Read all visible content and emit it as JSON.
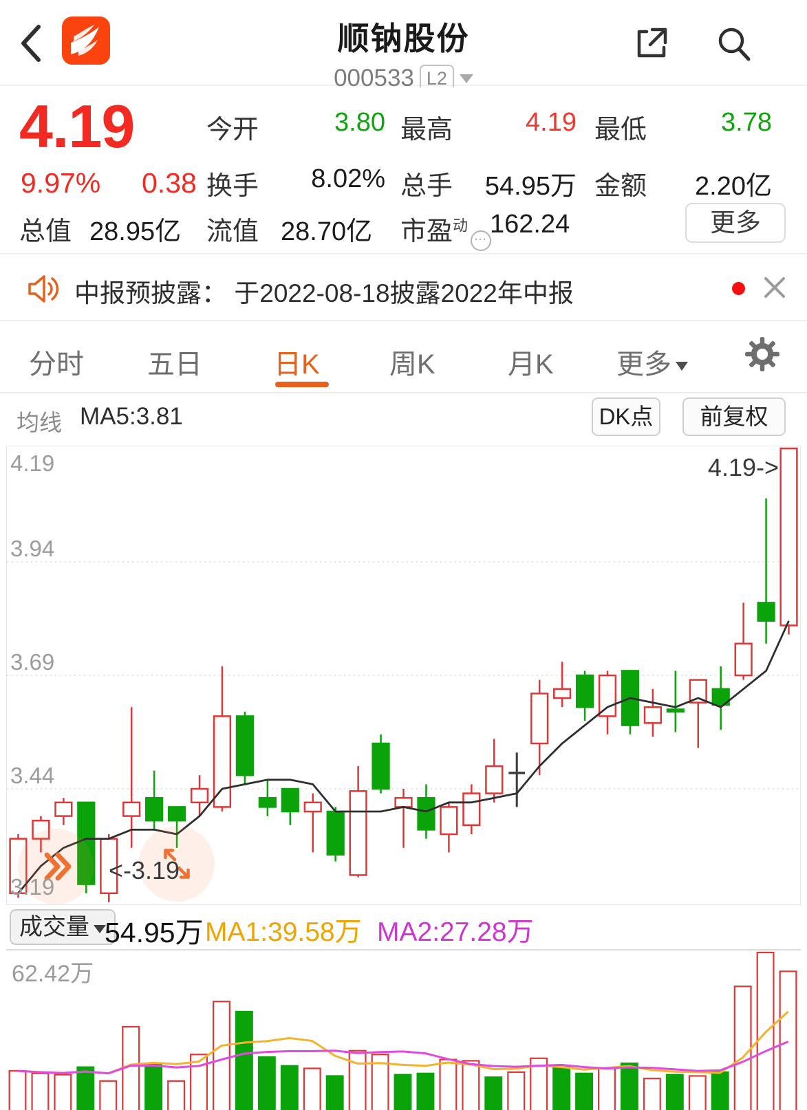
{
  "header": {
    "title": "顺钠股份",
    "code": "000533",
    "level_badge": "L2"
  },
  "quote": {
    "price": "4.19",
    "change_pct": "9.97%",
    "change_val": "0.38",
    "r1": [
      {
        "label": "今开",
        "value": "3.80",
        "color": "green"
      },
      {
        "label": "最高",
        "value": "4.19",
        "color": "red"
      },
      {
        "label": "最低",
        "value": "3.78",
        "color": "green"
      }
    ],
    "r2": [
      {
        "label": "换手",
        "value": "8.02%"
      },
      {
        "label": "总手",
        "value": "54.95万"
      },
      {
        "label": "金额",
        "value": "2.20亿"
      }
    ],
    "r3": [
      {
        "label": "总值",
        "value": "28.95亿"
      },
      {
        "label": "流值",
        "value": "28.70亿"
      },
      {
        "label": "市盈",
        "sup": "动",
        "value": "162.24"
      }
    ],
    "more_label": "更多"
  },
  "announcement": {
    "text": "中报预披露： 于2022-08-18披露2022年中报"
  },
  "tabs": {
    "items": [
      "分时",
      "五日",
      "日K",
      "周K",
      "月K"
    ],
    "active": "日K",
    "more_label": "更多"
  },
  "chart_header": {
    "ma_group_label": "均线",
    "ma5_label": "MA5:3.81",
    "dk_button": "DK点",
    "adjust_button": "前复权"
  },
  "chart_data": {
    "type": "candlestick+volume",
    "price_axis": {
      "max": 4.19,
      "min": 3.19,
      "tick_labels": [
        "4.19",
        "3.94",
        "3.69",
        "3.44",
        "3.19"
      ],
      "grid_levels": [
        3.94,
        3.69,
        3.44
      ]
    },
    "annotations": {
      "high_marker": "4.19->",
      "low_marker": "<-3.19"
    },
    "candles": [
      [
        3.21,
        3.33,
        3.34,
        3.2,
        "r"
      ],
      [
        3.33,
        3.37,
        3.38,
        3.3,
        "r"
      ],
      [
        3.38,
        3.41,
        3.42,
        3.36,
        "r"
      ],
      [
        3.41,
        3.23,
        3.41,
        3.21,
        "g"
      ],
      [
        3.21,
        3.33,
        3.34,
        3.19,
        "r"
      ],
      [
        3.38,
        3.41,
        3.62,
        3.31,
        "r"
      ],
      [
        3.42,
        3.37,
        3.48,
        3.35,
        "g"
      ],
      [
        3.4,
        3.37,
        3.4,
        3.31,
        "g"
      ],
      [
        3.41,
        3.44,
        3.47,
        3.38,
        "r"
      ],
      [
        3.4,
        3.6,
        3.71,
        3.39,
        "r"
      ],
      [
        3.6,
        3.47,
        3.61,
        3.45,
        "g"
      ],
      [
        3.42,
        3.4,
        3.46,
        3.38,
        "g"
      ],
      [
        3.44,
        3.39,
        3.44,
        3.36,
        "g"
      ],
      [
        3.39,
        3.41,
        3.43,
        3.3,
        "r"
      ],
      [
        3.39,
        3.295,
        3.4,
        3.28,
        "g"
      ],
      [
        3.25,
        3.435,
        3.49,
        3.245,
        "r"
      ],
      [
        3.54,
        3.44,
        3.56,
        3.43,
        "g"
      ],
      [
        3.4,
        3.42,
        3.44,
        3.31,
        "r"
      ],
      [
        3.42,
        3.35,
        3.45,
        3.33,
        "g"
      ],
      [
        3.34,
        3.4,
        3.41,
        3.3,
        "r"
      ],
      [
        3.36,
        3.43,
        3.45,
        3.34,
        "r"
      ],
      [
        3.43,
        3.49,
        3.55,
        3.41,
        "r"
      ],
      [
        3.475,
        3.475,
        3.52,
        3.4,
        "d"
      ],
      [
        3.54,
        3.65,
        3.68,
        3.47,
        "r"
      ],
      [
        3.64,
        3.66,
        3.72,
        3.62,
        "r"
      ],
      [
        3.69,
        3.62,
        3.7,
        3.59,
        "g"
      ],
      [
        3.6,
        3.69,
        3.7,
        3.56,
        "r"
      ],
      [
        3.7,
        3.58,
        3.7,
        3.56,
        "g"
      ],
      [
        3.585,
        3.62,
        3.66,
        3.555,
        "r"
      ],
      [
        3.61,
        3.615,
        3.7,
        3.565,
        "g"
      ],
      [
        3.63,
        3.68,
        3.68,
        3.53,
        "r"
      ],
      [
        3.66,
        3.625,
        3.71,
        3.57,
        "g"
      ],
      [
        3.69,
        3.76,
        3.85,
        3.68,
        "r"
      ],
      [
        3.85,
        3.81,
        4.08,
        3.76,
        "g"
      ],
      [
        3.8,
        4.19,
        4.19,
        3.78,
        "r"
      ]
    ],
    "ma5": [
      3.21,
      3.27,
      3.31,
      3.33,
      3.33,
      3.35,
      3.35,
      3.34,
      3.38,
      3.44,
      3.45,
      3.46,
      3.46,
      3.45,
      3.39,
      3.39,
      3.39,
      3.4,
      3.39,
      3.41,
      3.41,
      3.42,
      3.43,
      3.49,
      3.54,
      3.58,
      3.62,
      3.64,
      3.63,
      3.62,
      3.64,
      3.62,
      3.66,
      3.7,
      3.81
    ],
    "volume": {
      "axis_max": 62.42,
      "max_label": "62.42万",
      "bars": [
        [
          15.5,
          "r"
        ],
        [
          14.5,
          "r"
        ],
        [
          14,
          "r"
        ],
        [
          17,
          "g"
        ],
        [
          11.5,
          "r"
        ],
        [
          33,
          "r"
        ],
        [
          18,
          "g"
        ],
        [
          11.5,
          "r"
        ],
        [
          22,
          "r"
        ],
        [
          43,
          "r"
        ],
        [
          39,
          "g"
        ],
        [
          21,
          "g"
        ],
        [
          17.5,
          "g"
        ],
        [
          16.5,
          "r"
        ],
        [
          13.5,
          "g"
        ],
        [
          23.5,
          "r"
        ],
        [
          22,
          "r"
        ],
        [
          14,
          "g"
        ],
        [
          14.5,
          "g"
        ],
        [
          20,
          "r"
        ],
        [
          19.5,
          "r"
        ],
        [
          13,
          "g"
        ],
        [
          15,
          "r"
        ],
        [
          20.5,
          "r"
        ],
        [
          17,
          "g"
        ],
        [
          14.5,
          "g"
        ],
        [
          16.5,
          "r"
        ],
        [
          18.5,
          "g"
        ],
        [
          12.5,
          "r"
        ],
        [
          14,
          "g"
        ],
        [
          13.5,
          "r"
        ],
        [
          15,
          "g"
        ],
        [
          49,
          "r"
        ],
        [
          62.42,
          "r"
        ],
        [
          54.95,
          "r"
        ]
      ],
      "ma1_window": 5,
      "ma2_window": 10
    },
    "colors": {
      "up": "#e23636",
      "down": "#0aa30a",
      "doji": "#3c3c3c",
      "ma5_line": "#2f2f2f",
      "vol_ma1": "#f5b32c",
      "vol_ma2": "#e04ae0",
      "grid": "#dcdcdc"
    }
  },
  "volume_header": {
    "selector_label": "成交量",
    "current": "54.95万",
    "ma1_label": "MA1:39.58万",
    "ma2_label": "MA2:27.28万"
  }
}
